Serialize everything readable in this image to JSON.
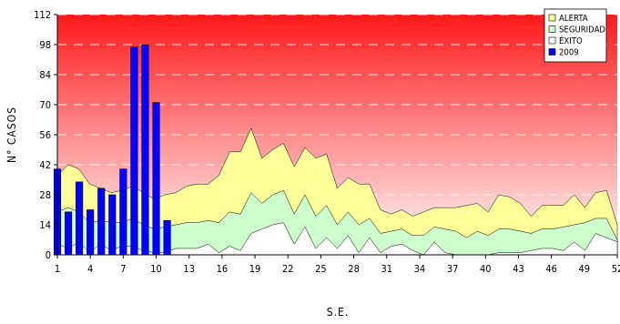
{
  "chart_data": {
    "type": "area",
    "xlabel": "S.E.",
    "ylabel": "N° CASOS",
    "x_range": [
      1,
      52
    ],
    "ylim": [
      0,
      112
    ],
    "x_ticks": [
      1,
      4,
      7,
      10,
      13,
      16,
      19,
      22,
      25,
      28,
      31,
      34,
      37,
      40,
      43,
      46,
      49,
      52
    ],
    "y_ticks": [
      0,
      14,
      28,
      42,
      56,
      70,
      84,
      98,
      112
    ],
    "grid": "horizontal",
    "legend_position": "top-right",
    "background_gradient": [
      "#ff1a1a",
      "#ffffff"
    ],
    "series": [
      {
        "name": "ALERTA",
        "color": "#ffff99",
        "values": [
          37,
          42,
          40,
          33,
          31,
          29,
          30,
          32,
          29,
          26,
          28,
          29,
          32,
          33,
          33,
          37,
          48,
          48,
          59,
          45,
          49,
          52,
          41,
          50,
          45,
          47,
          31,
          36,
          33,
          33,
          21,
          19,
          21,
          18,
          20,
          22,
          22,
          22,
          23,
          24,
          20,
          28,
          27,
          24,
          18,
          23,
          23,
          23,
          28,
          22,
          29,
          30,
          14
        ]
      },
      {
        "name": "SEGURIDAD",
        "color": "#ccffcc",
        "values": [
          20,
          22,
          20,
          15,
          16,
          15,
          15,
          17,
          14,
          12,
          13,
          14,
          15,
          15,
          16,
          15,
          20,
          19,
          29,
          24,
          28,
          30,
          19,
          28,
          18,
          23,
          14,
          20,
          14,
          17,
          10,
          11,
          12,
          9,
          9,
          13,
          12,
          11,
          8,
          11,
          9,
          12,
          12,
          11,
          10,
          12,
          12,
          13,
          14,
          15,
          17,
          17,
          7
        ]
      },
      {
        "name": "ÉXITO",
        "color": "#ffffff",
        "values": [
          5,
          3,
          6,
          1,
          5,
          2,
          4,
          4,
          2,
          1,
          1,
          3,
          3,
          3,
          5,
          1,
          4,
          2,
          10,
          12,
          14,
          15,
          5,
          13,
          3,
          8,
          3,
          9,
          1,
          8,
          1,
          4,
          5,
          2,
          0,
          6,
          1,
          0,
          0,
          0,
          0,
          1,
          1,
          1,
          2,
          3,
          3,
          2,
          6,
          2,
          10,
          8,
          6
        ]
      },
      {
        "name": "2009",
        "color": "#0000ff",
        "type": "bar",
        "x": [
          1,
          2,
          3,
          4,
          5,
          6,
          7,
          8,
          9,
          10,
          11
        ],
        "values": [
          40,
          20,
          34,
          21,
          31,
          28,
          40,
          97,
          98,
          71,
          16
        ]
      }
    ]
  }
}
